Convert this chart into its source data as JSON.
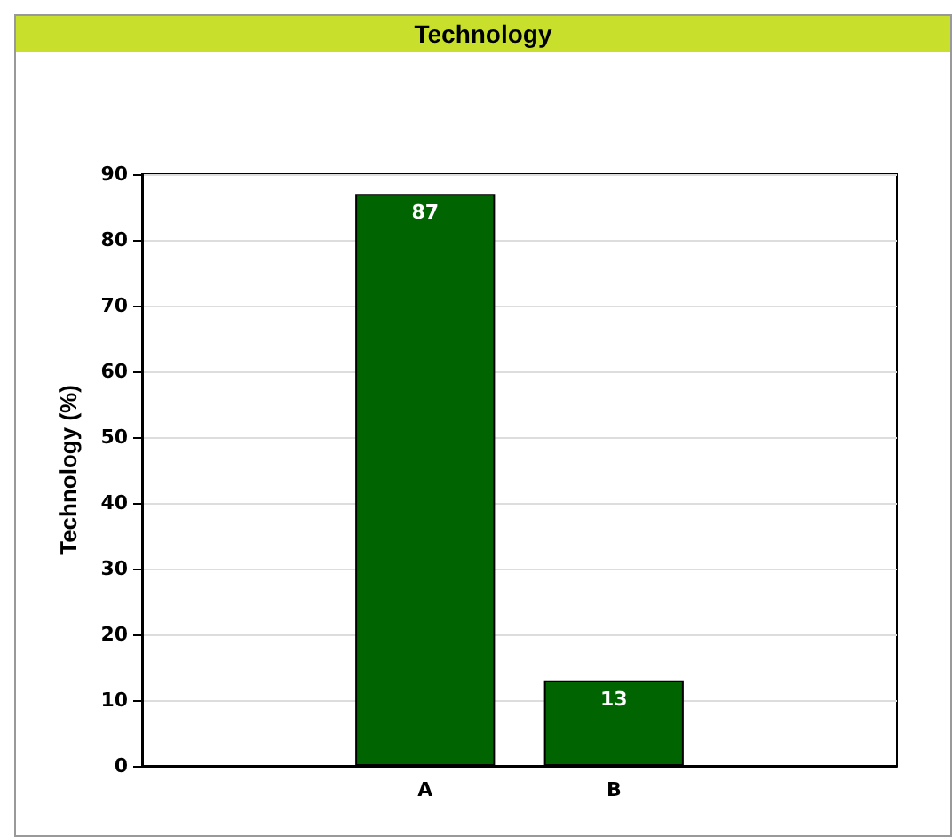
{
  "chart_data": {
    "type": "bar",
    "title": "Technology",
    "ylabel": "Technology (%)",
    "categories": [
      null,
      "A",
      "B",
      null
    ],
    "values": [
      null,
      87,
      13,
      null
    ],
    "color": "#006400",
    "ylim": [
      0,
      90
    ],
    "yticks": [
      0,
      10,
      20,
      30,
      40,
      50,
      60,
      70,
      80,
      90
    ],
    "grid": "y",
    "data_labels": true
  }
}
